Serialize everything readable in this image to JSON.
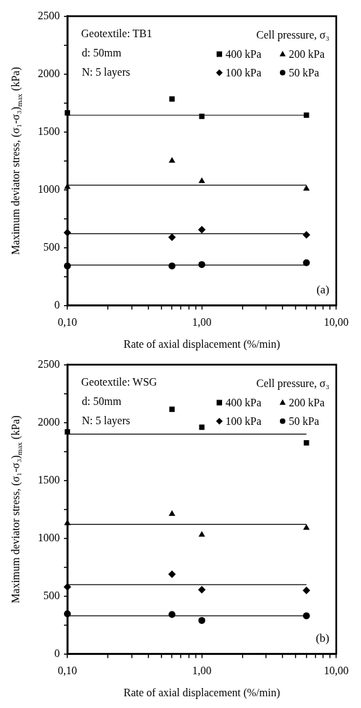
{
  "chart_data": [
    {
      "type": "scatter",
      "xlabel": "Rate of axial displacement (%/min)",
      "ylabel": "Maximum deviator stress, (σ₁-σ₃)$_{max}$ (kPa)",
      "legend_title": "Cell pressure, σ₃",
      "annotations": [
        "Geotextile: TB1",
        "d: 50mm",
        "N: 5 layers",
        "(a)"
      ],
      "log": "x",
      "xlim": [
        0.1,
        10
      ],
      "xticks": [
        {
          "value": 0.1,
          "label": "0,10"
        },
        {
          "value": 0.2,
          "label": null
        },
        {
          "value": 0.3,
          "label": null
        },
        {
          "value": 0.4,
          "label": null
        },
        {
          "value": 0.5,
          "label": null
        },
        {
          "value": 0.6,
          "label": null
        },
        {
          "value": 0.7,
          "label": null
        },
        {
          "value": 0.8,
          "label": null
        },
        {
          "value": 0.9,
          "label": null
        },
        {
          "value": 1,
          "label": "1,00"
        },
        {
          "value": 2,
          "label": null
        },
        {
          "value": 3,
          "label": null
        },
        {
          "value": 4,
          "label": null
        },
        {
          "value": 5,
          "label": null
        },
        {
          "value": 6,
          "label": null
        },
        {
          "value": 7,
          "label": null
        },
        {
          "value": 8,
          "label": null
        },
        {
          "value": 9,
          "label": null
        },
        {
          "value": 10,
          "label": "10,00"
        }
      ],
      "ylim": [
        0,
        2500
      ],
      "yticks": [
        0,
        {
          "value": 250,
          "label": null
        },
        500,
        {
          "value": 750,
          "label": null
        },
        1000,
        {
          "value": 1250,
          "label": null
        },
        1500,
        {
          "value": 1750,
          "label": null
        },
        2000,
        {
          "value": 2250,
          "label": null
        },
        2500
      ],
      "grid": false,
      "legend": "top right",
      "series": [
        {
          "name": "400 kPa",
          "color": "#000000",
          "marker": "square",
          "x": [
            0.1,
            0.6,
            1,
            6
          ],
          "values": [
            1665,
            1785,
            1635,
            1645
          ]
        },
        {
          "name": "200 kPa",
          "color": "#000000",
          "marker": "triangle",
          "x": [
            0.1,
            0.6,
            1,
            6
          ],
          "values": [
            1025,
            1250,
            1075,
            1010
          ]
        },
        {
          "name": "100 kPa",
          "color": "#000000",
          "marker": "diamond",
          "x": [
            0.1,
            0.6,
            1,
            6
          ],
          "values": [
            630,
            590,
            655,
            610
          ]
        },
        {
          "name": "50 kPa",
          "color": "#000000",
          "marker": "circle",
          "x": [
            0.1,
            0.6,
            1,
            6
          ],
          "values": [
            342,
            342,
            354,
            370
          ]
        },
        {
          "type": "line",
          "color": "#000000",
          "marker": "none",
          "x": [
            0.1,
            6
          ],
          "values": [
            1645,
            1645
          ]
        },
        {
          "type": "line",
          "color": "#000000",
          "marker": "none",
          "x": [
            0.1,
            6
          ],
          "values": [
            1040,
            1040
          ]
        },
        {
          "type": "line",
          "color": "#000000",
          "marker": "none",
          "x": [
            0.1,
            6
          ],
          "values": [
            620,
            620
          ]
        },
        {
          "type": "line",
          "color": "#000000",
          "marker": "none",
          "x": [
            0.1,
            6
          ],
          "values": [
            350,
            350
          ]
        }
      ]
    },
    {
      "type": "scatter",
      "xlabel": "Rate of axial displacement (%/min)",
      "ylabel": "Maximum deviator stress, (σ₁-σ₃)$_{max}$ (kPa)",
      "legend_title": "Cell pressure, σ₃",
      "annotations": [
        "Geotextile: WSG",
        "d: 50mm",
        "N: 5 layers",
        "(b)"
      ],
      "log": "x",
      "xlim": [
        0.1,
        10
      ],
      "xticks": [
        {
          "value": 0.1,
          "label": "0,10"
        },
        {
          "value": 0.2,
          "label": null
        },
        {
          "value": 0.3,
          "label": null
        },
        {
          "value": 0.4,
          "label": null
        },
        {
          "value": 0.5,
          "label": null
        },
        {
          "value": 0.6,
          "label": null
        },
        {
          "value": 0.7,
          "label": null
        },
        {
          "value": 0.8,
          "label": null
        },
        {
          "value": 0.9,
          "label": null
        },
        {
          "value": 1,
          "label": "1,00"
        },
        {
          "value": 2,
          "label": null
        },
        {
          "value": 3,
          "label": null
        },
        {
          "value": 4,
          "label": null
        },
        {
          "value": 5,
          "label": null
        },
        {
          "value": 6,
          "label": null
        },
        {
          "value": 7,
          "label": null
        },
        {
          "value": 8,
          "label": null
        },
        {
          "value": 9,
          "label": null
        },
        {
          "value": 10,
          "label": "10,00"
        }
      ],
      "ylim": [
        0,
        2500
      ],
      "yticks": [
        0,
        {
          "value": 250,
          "label": null
        },
        500,
        {
          "value": 750,
          "label": null
        },
        1000,
        {
          "value": 1250,
          "label": null
        },
        1500,
        {
          "value": 1750,
          "label": null
        },
        2000,
        {
          "value": 2250,
          "label": null
        },
        2500
      ],
      "grid": false,
      "legend": "top right",
      "series": [
        {
          "name": "400 kPa",
          "color": "#000000",
          "marker": "square",
          "x": [
            0.1,
            0.6,
            1,
            6
          ],
          "values": [
            1920,
            2115,
            1960,
            1825
          ]
        },
        {
          "name": "200 kPa",
          "color": "#000000",
          "marker": "triangle",
          "x": [
            0.1,
            0.6,
            1,
            6
          ],
          "values": [
            1130,
            1210,
            1030,
            1090
          ]
        },
        {
          "name": "100 kPa",
          "color": "#000000",
          "marker": "diamond",
          "x": [
            0.1,
            0.6,
            1,
            6
          ],
          "values": [
            580,
            690,
            555,
            550
          ]
        },
        {
          "name": "50 kPa",
          "color": "#000000",
          "marker": "circle",
          "x": [
            0.1,
            0.6,
            1,
            6
          ],
          "values": [
            347,
            341,
            290,
            330
          ]
        },
        {
          "type": "line",
          "color": "#000000",
          "marker": "none",
          "x": [
            0.1,
            6
          ],
          "values": [
            1900,
            1900
          ]
        },
        {
          "type": "line",
          "color": "#000000",
          "marker": "none",
          "x": [
            0.1,
            6
          ],
          "values": [
            1120,
            1120
          ]
        },
        {
          "type": "line",
          "color": "#000000",
          "marker": "none",
          "x": [
            0.1,
            6
          ],
          "values": [
            600,
            600
          ]
        },
        {
          "type": "line",
          "color": "#000000",
          "marker": "none",
          "x": [
            0.1,
            6
          ],
          "values": [
            330,
            330
          ]
        }
      ]
    }
  ]
}
